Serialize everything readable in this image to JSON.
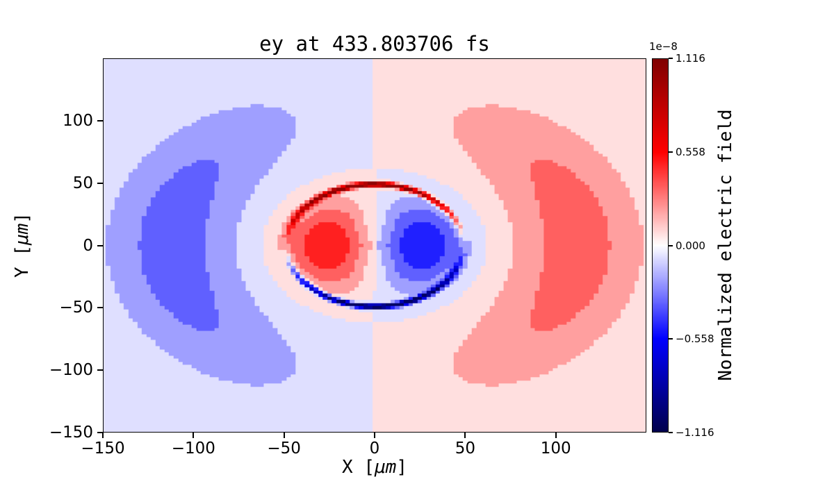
{
  "title": "ey at 433.803706 fs",
  "axes": {
    "xlabel": {
      "pre": "X [",
      "math": "μm",
      "post": "]"
    },
    "ylabel": {
      "pre": "Y [",
      "math": "μm",
      "post": "]"
    },
    "x_ticks": [
      {
        "value": -150,
        "label": "−150"
      },
      {
        "value": -100,
        "label": "−100"
      },
      {
        "value": -50,
        "label": "−50"
      },
      {
        "value": 0,
        "label": "0"
      },
      {
        "value": 50,
        "label": "50"
      },
      {
        "value": 100,
        "label": "100"
      }
    ],
    "y_ticks": [
      {
        "value": -150,
        "label": "−150"
      },
      {
        "value": -100,
        "label": "−100"
      },
      {
        "value": -50,
        "label": "−50"
      },
      {
        "value": 0,
        "label": "0"
      },
      {
        "value": 50,
        "label": "50"
      },
      {
        "value": 100,
        "label": "100"
      }
    ]
  },
  "colorbar": {
    "label": "Normalized electric field",
    "offset_label": "1e−8",
    "ticks": [
      {
        "value": 1.116,
        "label": "1.116"
      },
      {
        "value": 0.558,
        "label": "0.558"
      },
      {
        "value": 0.0,
        "label": "0.000"
      },
      {
        "value": -0.558,
        "label": "−0.558"
      },
      {
        "value": -1.116,
        "label": "−1.116"
      }
    ]
  },
  "chart_data": {
    "type": "heatmap",
    "title": "ey at 433.803706 fs",
    "time_fs": 433.803706,
    "field_name": "ey",
    "xlabel": "X [μm]",
    "ylabel": "Y [μm]",
    "xlim": [
      -150,
      150
    ],
    "ylim": [
      -150,
      150
    ],
    "value_scale": "1e-8",
    "vmin": -1.116,
    "vmax": 1.116,
    "colorbar_label": "Normalized electric field",
    "colormap": "seismic",
    "contour_levels": 16,
    "grid_resolution_um": 2.5,
    "field_components": [
      {
        "kind": "inner_dipole_lobes",
        "form": "amp*(x/r)*exp(-((r-r_peak)/r_sigma)^2)",
        "amp": -0.55,
        "r_peak": 27,
        "r_sigma": 24,
        "description": "red (positive) lobe centered near (-30,0) and blue (negative) lobe near (+30,0) inside the r=50 um sphere, separated by a white band at x=0"
      },
      {
        "kind": "outer_crescents",
        "form": "amp*(x/r)*exp(-((r-r_peak)/r_sigma)^2)",
        "amp": 0.35,
        "r_peak": 112,
        "r_sigma": 38,
        "description": "light-blue crescent hugging the left side (peak ~(-112,0)) and light-red crescent on the right side (peak ~(112,0)), fading to white at top/bottom center"
      },
      {
        "kind": "sphere_surface_ring",
        "form": "amp*(y/r)*exp(-((r-r0)/sigma)^2)",
        "amp": 1.3,
        "r0": 49,
        "sigma": 2.0,
        "description": "thin saturated ring at the sphere surface r=49 um: dark red upper arc, dark blue lower arc, vanishing at (±49,0)"
      }
    ]
  }
}
